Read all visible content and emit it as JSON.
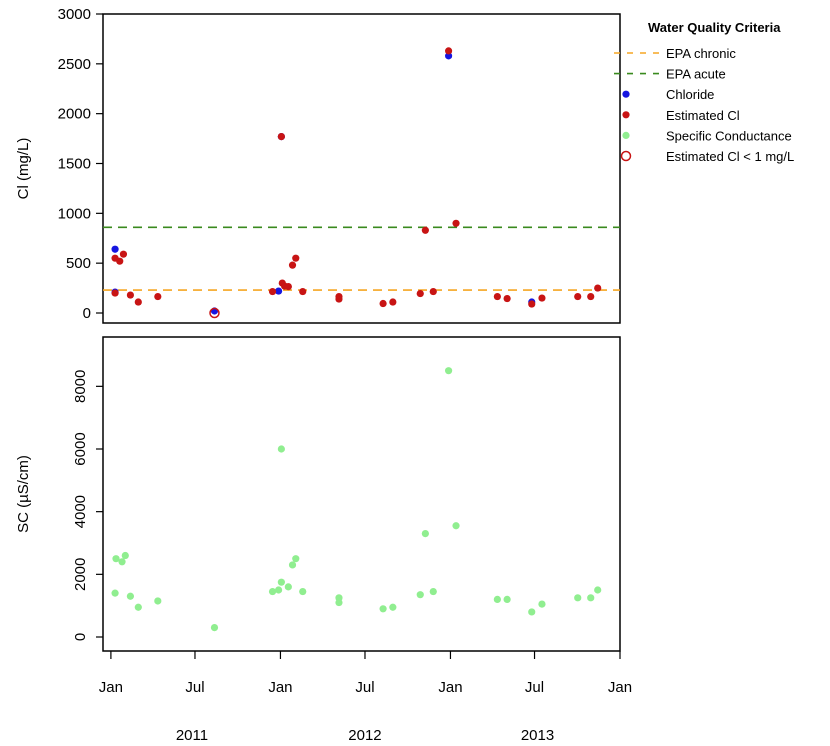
{
  "chart_data": [
    {
      "type": "scatter",
      "ylabel": "Cl (mg/L)",
      "ylim": [
        0,
        3000
      ],
      "yticks": [
        "0",
        "500",
        "1000",
        "1500",
        "2000",
        "2500",
        "3000"
      ],
      "reference_lines": [
        {
          "name": "EPA chronic",
          "y": 230,
          "color": "#f5a623",
          "dash": true
        },
        {
          "name": "EPA acute",
          "y": 860,
          "color": "#3a8a1e",
          "dash": true
        }
      ],
      "series": [
        {
          "name": "Chloride",
          "color": "#1515e0",
          "marker": "filled",
          "points": [
            [
              "2011-01-10",
              640
            ],
            [
              "2011-01-10",
              210
            ],
            [
              "2011-08-12",
              20
            ],
            [
              "2011-12-28",
              220
            ],
            [
              "2012-01-03",
              1770
            ],
            [
              "2012-12-28",
              2580
            ],
            [
              "2013-06-25",
              110
            ]
          ]
        },
        {
          "name": "Estimated Cl",
          "color": "#c81414",
          "marker": "filled",
          "points": [
            [
              "2011-01-10",
              550
            ],
            [
              "2011-01-10",
              200
            ],
            [
              "2011-01-20",
              520
            ],
            [
              "2011-01-28",
              590
            ],
            [
              "2011-02-12",
              180
            ],
            [
              "2011-03-01",
              110
            ],
            [
              "2011-04-12",
              165
            ],
            [
              "2011-12-15",
              215
            ],
            [
              "2012-01-03",
              1770
            ],
            [
              "2012-01-05",
              300
            ],
            [
              "2012-01-10",
              270
            ],
            [
              "2012-01-18",
              265
            ],
            [
              "2012-01-27",
              480
            ],
            [
              "2012-02-03",
              550
            ],
            [
              "2012-02-18",
              215
            ],
            [
              "2012-05-06",
              140
            ],
            [
              "2012-05-06",
              165
            ],
            [
              "2012-08-09",
              95
            ],
            [
              "2012-08-30",
              110
            ],
            [
              "2012-10-28",
              195
            ],
            [
              "2012-11-08",
              830
            ],
            [
              "2012-11-25",
              215
            ],
            [
              "2012-12-28",
              2630
            ],
            [
              "2013-01-13",
              900
            ],
            [
              "2013-04-12",
              165
            ],
            [
              "2013-05-03",
              145
            ],
            [
              "2013-06-25",
              90
            ],
            [
              "2013-07-17",
              150
            ],
            [
              "2013-10-02",
              165
            ],
            [
              "2013-10-30",
              165
            ],
            [
              "2013-11-14",
              250
            ]
          ]
        },
        {
          "name": "Specific Conductance",
          "color": "#90ee90",
          "marker": "filled",
          "points": []
        },
        {
          "name": "Estimated Cl < 1 mg/L",
          "color": "#c81414",
          "marker": "open",
          "points": [
            [
              "2011-08-12",
              0
            ]
          ]
        }
      ]
    },
    {
      "type": "scatter",
      "ylabel": "SC (µS/cm)",
      "ylim": [
        0,
        9000
      ],
      "yticks": [
        "0",
        "2000",
        "4000",
        "6000",
        "8000"
      ],
      "series": [
        {
          "name": "Specific Conductance",
          "color": "#90ee90",
          "marker": "filled",
          "points": [
            [
              "2011-01-10",
              1400
            ],
            [
              "2011-01-12",
              2500
            ],
            [
              "2011-01-25",
              2400
            ],
            [
              "2011-02-01",
              2600
            ],
            [
              "2011-02-12",
              1300
            ],
            [
              "2011-03-01",
              950
            ],
            [
              "2011-04-12",
              1150
            ],
            [
              "2011-08-12",
              300
            ],
            [
              "2011-12-15",
              1450
            ],
            [
              "2011-12-28",
              1500
            ],
            [
              "2012-01-03",
              6000
            ],
            [
              "2012-01-03",
              1750
            ],
            [
              "2012-01-18",
              1600
            ],
            [
              "2012-01-27",
              2300
            ],
            [
              "2012-02-03",
              2500
            ],
            [
              "2012-02-18",
              1450
            ],
            [
              "2012-05-06",
              1250
            ],
            [
              "2012-05-06",
              1100
            ],
            [
              "2012-08-09",
              900
            ],
            [
              "2012-08-30",
              950
            ],
            [
              "2012-10-28",
              1350
            ],
            [
              "2012-11-08",
              3300
            ],
            [
              "2012-11-25",
              1450
            ],
            [
              "2012-12-28",
              8500
            ],
            [
              "2013-01-13",
              3550
            ],
            [
              "2013-04-12",
              1200
            ],
            [
              "2013-05-03",
              1200
            ],
            [
              "2013-06-25",
              800
            ],
            [
              "2013-07-17",
              1050
            ],
            [
              "2013-10-02",
              1250
            ],
            [
              "2013-10-30",
              1250
            ],
            [
              "2013-11-14",
              1500
            ]
          ]
        }
      ]
    }
  ],
  "x_axis": {
    "range": [
      "2010-12-15",
      "2014-01-01"
    ],
    "ticks": [
      {
        "date": "2011-01-01",
        "label": "Jan"
      },
      {
        "date": "2011-07-01",
        "label": "Jul"
      },
      {
        "date": "2012-01-01",
        "label": "Jan"
      },
      {
        "date": "2012-07-01",
        "label": "Jul"
      },
      {
        "date": "2013-01-01",
        "label": "Jan"
      },
      {
        "date": "2013-07-01",
        "label": "Jul"
      },
      {
        "date": "2014-01-01",
        "label": "Jan"
      }
    ],
    "year_labels": [
      {
        "date": "2011-07-01",
        "label": "2011"
      },
      {
        "date": "2012-07-01",
        "label": "2012"
      },
      {
        "date": "2013-07-01",
        "label": "2013"
      }
    ]
  },
  "legend": {
    "title": "Water Quality Criteria",
    "placement": "top-right, outside plot",
    "items": [
      {
        "label": "EPA chronic",
        "symbol": "dash",
        "color": "#f5a623"
      },
      {
        "label": "EPA acute",
        "symbol": "dash",
        "color": "#3a8a1e"
      },
      {
        "label": "Chloride",
        "symbol": "dot",
        "color": "#1515e0"
      },
      {
        "label": "Estimated Cl",
        "symbol": "dot",
        "color": "#c81414"
      },
      {
        "label": "Specific Conductance",
        "symbol": "dot",
        "color": "#90ee90"
      },
      {
        "label": "Estimated Cl < 1 mg/L",
        "symbol": "open-circle",
        "color": "#c81414"
      }
    ]
  }
}
